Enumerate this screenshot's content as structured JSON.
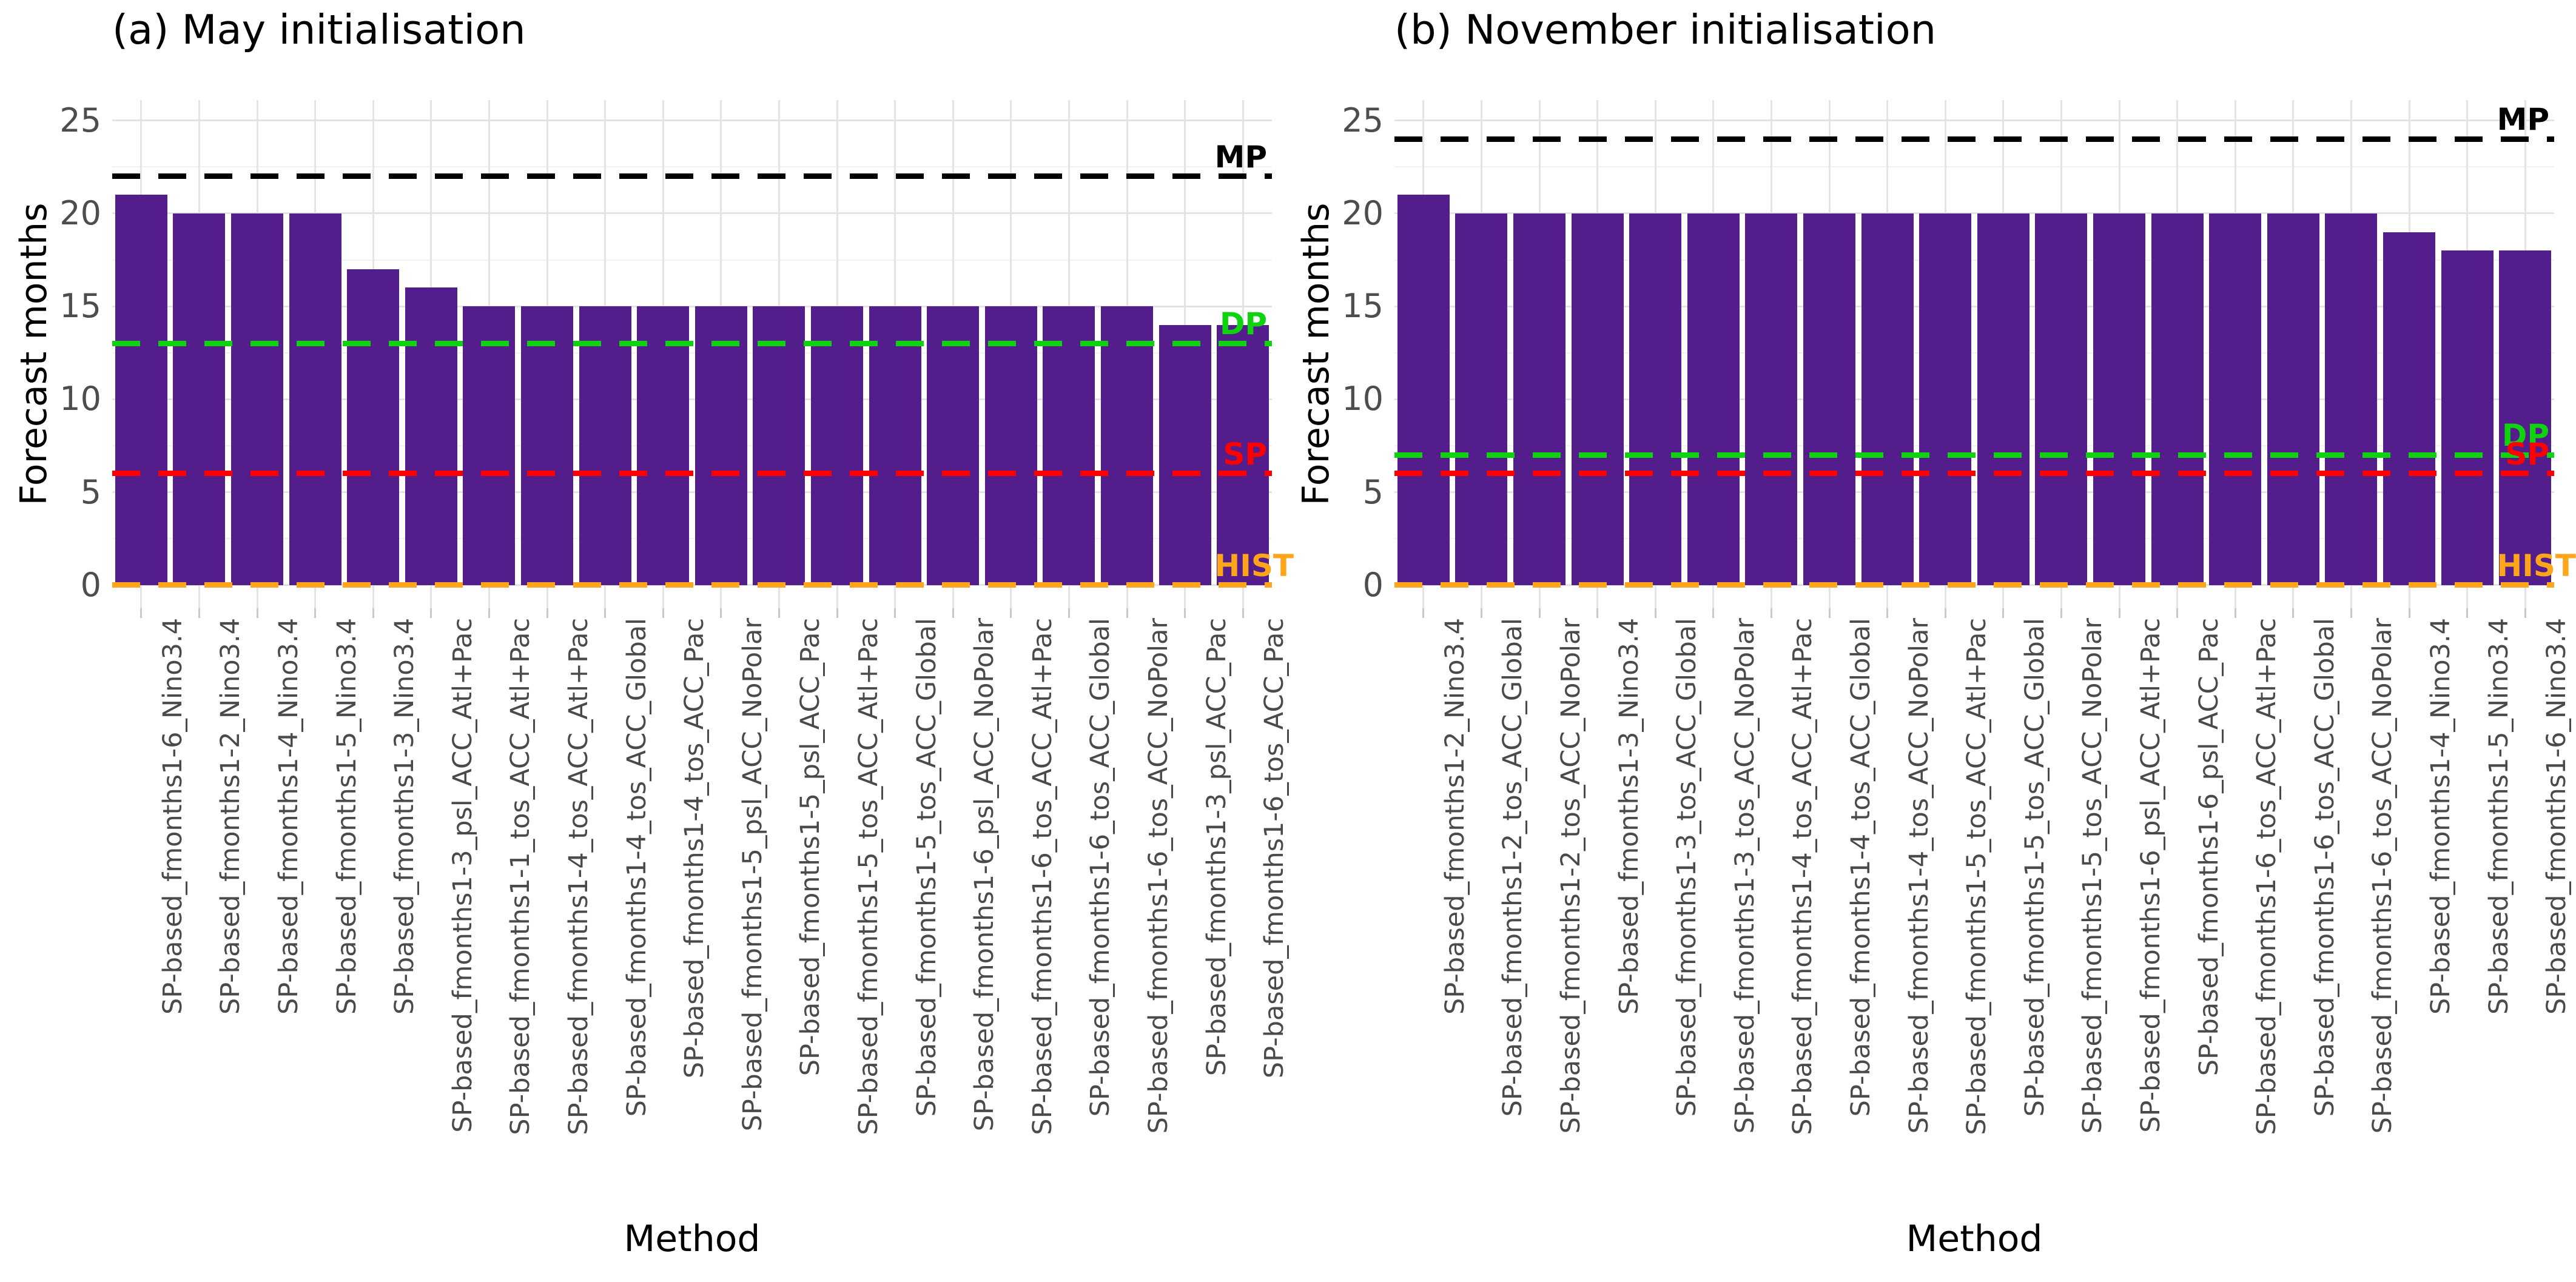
{
  "figure": {
    "background": "#ffffff",
    "bar_color": "#531e8c",
    "grid_major_color": "#e4e4e4",
    "grid_minor_color": "#f1f1f1",
    "tick_label_color": "#4d4d4d",
    "yticks": [
      0,
      5,
      10,
      15,
      20,
      25
    ]
  },
  "chart_data": [
    {
      "type": "bar",
      "title": "(a) May initialisation",
      "xlabel": "Method",
      "ylabel": "Forecast months",
      "ylim": [
        0,
        25
      ],
      "grid": true,
      "categories": [
        "SP-based_fmonths1-6_Nino3.4",
        "SP-based_fmonths1-2_Nino3.4",
        "SP-based_fmonths1-4_Nino3.4",
        "SP-based_fmonths1-5_Nino3.4",
        "SP-based_fmonths1-3_Nino3.4",
        "SP-based_fmonths1-3_psl_ACC_Atl+Pac",
        "SP-based_fmonths1-1_tos_ACC_Atl+Pac",
        "SP-based_fmonths1-4_tos_ACC_Atl+Pac",
        "SP-based_fmonths1-4_tos_ACC_Global",
        "SP-based_fmonths1-4_tos_ACC_Pac",
        "SP-based_fmonths1-5_psl_ACC_NoPolar",
        "SP-based_fmonths1-5_psl_ACC_Pac",
        "SP-based_fmonths1-5_tos_ACC_Atl+Pac",
        "SP-based_fmonths1-5_tos_ACC_Global",
        "SP-based_fmonths1-6_psl_ACC_NoPolar",
        "SP-based_fmonths1-6_tos_ACC_Atl+Pac",
        "SP-based_fmonths1-6_tos_ACC_Global",
        "SP-based_fmonths1-6_tos_ACC_NoPolar",
        "SP-based_fmonths1-3_psl_ACC_Pac",
        "SP-based_fmonths1-6_tos_ACC_Pac"
      ],
      "values": [
        21,
        20,
        20,
        20,
        17,
        16,
        15,
        15,
        15,
        15,
        15,
        15,
        15,
        15,
        15,
        15,
        15,
        15,
        14,
        14
      ],
      "reference_lines": [
        {
          "label": "MP",
          "value": 22,
          "color": "#000000"
        },
        {
          "label": "DP",
          "value": 13,
          "color": "#0fd30f"
        },
        {
          "label": "SP",
          "value": 6,
          "color": "#ff0000"
        },
        {
          "label": "HIST",
          "value": 0,
          "color": "#ffa51c"
        }
      ]
    },
    {
      "type": "bar",
      "title": "(b) November initialisation",
      "xlabel": "Method",
      "ylabel": "Forecast months",
      "ylim": [
        0,
        25
      ],
      "grid": true,
      "categories": [
        "SP-based_fmonths1-2_Nino3.4",
        "SP-based_fmonths1-2_tos_ACC_Global",
        "SP-based_fmonths1-2_tos_ACC_NoPolar",
        "SP-based_fmonths1-3_Nino3.4",
        "SP-based_fmonths1-3_tos_ACC_Global",
        "SP-based_fmonths1-3_tos_ACC_NoPolar",
        "SP-based_fmonths1-4_tos_ACC_Atl+Pac",
        "SP-based_fmonths1-4_tos_ACC_Global",
        "SP-based_fmonths1-4_tos_ACC_NoPolar",
        "SP-based_fmonths1-5_tos_ACC_Atl+Pac",
        "SP-based_fmonths1-5_tos_ACC_Global",
        "SP-based_fmonths1-5_tos_ACC_NoPolar",
        "SP-based_fmonths1-6_psl_ACC_Atl+Pac",
        "SP-based_fmonths1-6_psl_ACC_Pac",
        "SP-based_fmonths1-6_tos_ACC_Atl+Pac",
        "SP-based_fmonths1-6_tos_ACC_Global",
        "SP-based_fmonths1-6_tos_ACC_NoPolar",
        "SP-based_fmonths1-4_Nino3.4",
        "SP-based_fmonths1-5_Nino3.4",
        "SP-based_fmonths1-6_Nino3.4"
      ],
      "values": [
        21,
        20,
        20,
        20,
        20,
        20,
        20,
        20,
        20,
        20,
        20,
        20,
        20,
        20,
        20,
        20,
        20,
        19,
        18,
        18
      ],
      "reference_lines": [
        {
          "label": "MP",
          "value": 24,
          "color": "#000000"
        },
        {
          "label": "DP",
          "value": 7,
          "color": "#0fd30f"
        },
        {
          "label": "SP",
          "value": 6,
          "color": "#ff0000"
        },
        {
          "label": "HIST",
          "value": 0,
          "color": "#ffa51c"
        }
      ]
    }
  ]
}
